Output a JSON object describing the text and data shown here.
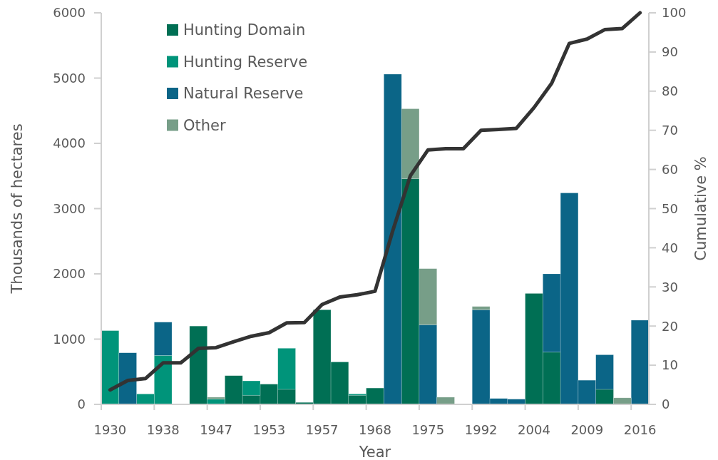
{
  "chart_data": {
    "type": "bar",
    "stacked": true,
    "xlabel": "Year",
    "ylabel": "Thousands of hectares",
    "y2label": "Cumulative %",
    "categories": [
      "1930",
      null,
      null,
      "1938",
      null,
      null,
      "1947",
      null,
      null,
      "1953",
      null,
      null,
      "1957",
      null,
      null,
      "1968",
      null,
      null,
      "1975",
      null,
      null,
      "1992",
      null,
      null,
      "2004",
      null,
      null,
      "2009",
      null,
      null,
      "2016"
    ],
    "series": [
      {
        "name": "Hunting Domain",
        "color": "#006f54",
        "values": [
          null,
          null,
          null,
          null,
          null,
          1200,
          null,
          440,
          140,
          310,
          230,
          30,
          1450,
          650,
          140,
          250,
          null,
          3460,
          null,
          null,
          null,
          null,
          null,
          null,
          1700,
          800,
          null,
          null,
          230,
          null,
          null
        ]
      },
      {
        "name": "Hunting Reserve",
        "color": "#00947a",
        "values": [
          1130,
          null,
          160,
          750,
          null,
          null,
          80,
          null,
          220,
          null,
          630,
          null,
          null,
          null,
          20,
          null,
          null,
          null,
          null,
          null,
          null,
          null,
          null,
          null,
          null,
          null,
          null,
          null,
          null,
          null,
          null
        ]
      },
      {
        "name": "Natural Reserve",
        "color": "#0b6587",
        "values": [
          null,
          790,
          null,
          510,
          null,
          null,
          null,
          null,
          null,
          null,
          null,
          null,
          null,
          null,
          null,
          null,
          5060,
          null,
          1220,
          null,
          null,
          1450,
          90,
          80,
          null,
          1200,
          3240,
          370,
          530,
          null,
          1290
        ]
      },
      {
        "name": "Other",
        "color": "#779e88",
        "values": [
          null,
          null,
          null,
          null,
          null,
          null,
          30,
          null,
          null,
          null,
          null,
          null,
          null,
          null,
          null,
          null,
          null,
          1070,
          860,
          110,
          null,
          50,
          null,
          null,
          null,
          null,
          null,
          null,
          null,
          100,
          null
        ]
      },
      {
        "type": "line",
        "axis": "y2",
        "color": "#333333",
        "values": [
          3.7,
          6.1,
          6.6,
          10.6,
          10.6,
          14.3,
          14.5,
          16.0,
          17.4,
          18.3,
          20.8,
          20.9,
          25.5,
          27.4,
          28.0,
          28.9,
          44.3,
          58.4,
          65.0,
          65.3,
          65.3,
          70.0,
          70.2,
          70.5,
          75.8,
          82.0,
          92.2,
          93.3,
          95.7,
          96.0,
          100
        ]
      }
    ],
    "ylim": [
      0,
      6000
    ],
    "yticks": [
      0,
      1000,
      2000,
      3000,
      4000,
      5000,
      6000
    ],
    "y2lim": [
      0,
      100
    ],
    "y2ticks": [
      0,
      10,
      20,
      30,
      40,
      50,
      60,
      70,
      80,
      90,
      100
    ],
    "legend": "top left",
    "grid": false,
    "marker": "none",
    "line_style": "solid"
  }
}
